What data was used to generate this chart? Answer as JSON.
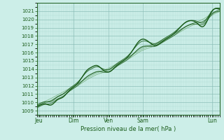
{
  "title": "",
  "xlabel": "Pression niveau de la mer( hPa )",
  "ylim": [
    1008.5,
    1022
  ],
  "yticks": [
    1009,
    1010,
    1011,
    1012,
    1013,
    1014,
    1015,
    1016,
    1017,
    1018,
    1019,
    1020,
    1021
  ],
  "day_labels": [
    "Jeu",
    "Dim",
    "Ven",
    "Sam",
    "Lun"
  ],
  "day_positions": [
    0.01,
    0.2,
    0.39,
    0.58,
    0.96
  ],
  "xlim": [
    0,
    1
  ],
  "bg_color": "#cceee8",
  "grid_color_major": "#88bbb4",
  "grid_color_minor": "#aad8d0",
  "line_color_dark": "#1a5c1a",
  "line_color_light": "#5a9c5a",
  "n_points": 300
}
